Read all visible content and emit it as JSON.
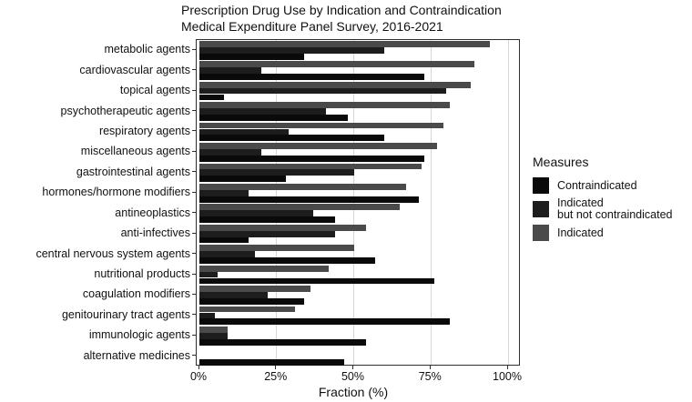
{
  "header": {
    "title": "Prescription Drug Use by Indication and Contraindication",
    "subtitle": "Medical Expenditure Panel Survey, 2016-2021"
  },
  "legend": {
    "title": "Measures",
    "items": [
      {
        "label": "Contraindicated",
        "color": "#0a0a0a"
      },
      {
        "label_line1": "Indicated",
        "label_line2": "but not contraindicated",
        "color": "#1d1d1d"
      },
      {
        "label": "Indicated",
        "color": "#4a4a4a"
      }
    ]
  },
  "x_axis": {
    "label": "Fraction (%)",
    "ticks": [
      {
        "value": 0,
        "label": "0%"
      },
      {
        "value": 25,
        "label": "25%"
      },
      {
        "value": 50,
        "label": "50%"
      },
      {
        "value": 75,
        "label": "75%"
      },
      {
        "value": 100,
        "label": "100%"
      }
    ]
  },
  "chart_data": {
    "type": "bar",
    "orientation": "horizontal",
    "title": "Prescription Drug Use by Indication and Contraindication",
    "subtitle": "Medical Expenditure Panel Survey, 2016-2021",
    "xlabel": "Fraction (%)",
    "ylabel": "",
    "xlim": [
      0,
      100
    ],
    "grid": "vertical-major-25-50-75-100",
    "legend_position": "right",
    "legend_title": "Measures",
    "legend_order_top_to_bottom": [
      "Contraindicated",
      "Indicated but not contraindicated",
      "Indicated"
    ],
    "categories": [
      "metabolic agents",
      "cardiovascular agents",
      "topical agents",
      "psychotherapeutic agents",
      "respiratory agents",
      "miscellaneous agents",
      "gastrointestinal agents",
      "hormones/hormone modifiers",
      "antineoplastics",
      "anti-infectives",
      "central nervous system agents",
      "nutritional products",
      "coagulation modifiers",
      "genitourinary tract agents",
      "immunologic agents",
      "alternative medicines"
    ],
    "series": [
      {
        "name": "Indicated",
        "color": "#4a4a4a",
        "values": [
          94,
          89,
          88,
          81,
          79,
          77,
          72,
          67,
          65,
          54,
          50,
          42,
          36,
          31,
          9,
          0
        ]
      },
      {
        "name": "Indicated but not contraindicated",
        "color": "#1d1d1d",
        "values": [
          60,
          20,
          80,
          41,
          29,
          20,
          50,
          16,
          37,
          44,
          18,
          6,
          22,
          5,
          9,
          0
        ]
      },
      {
        "name": "Contraindicated",
        "color": "#0a0a0a",
        "values": [
          34,
          73,
          8,
          48,
          60,
          73,
          28,
          71,
          44,
          16,
          57,
          76,
          34,
          81,
          54,
          47
        ]
      }
    ],
    "note": "Within each category group, bars top-to-bottom are: Indicated, Indicated but not contraindicated, Contraindicated"
  }
}
